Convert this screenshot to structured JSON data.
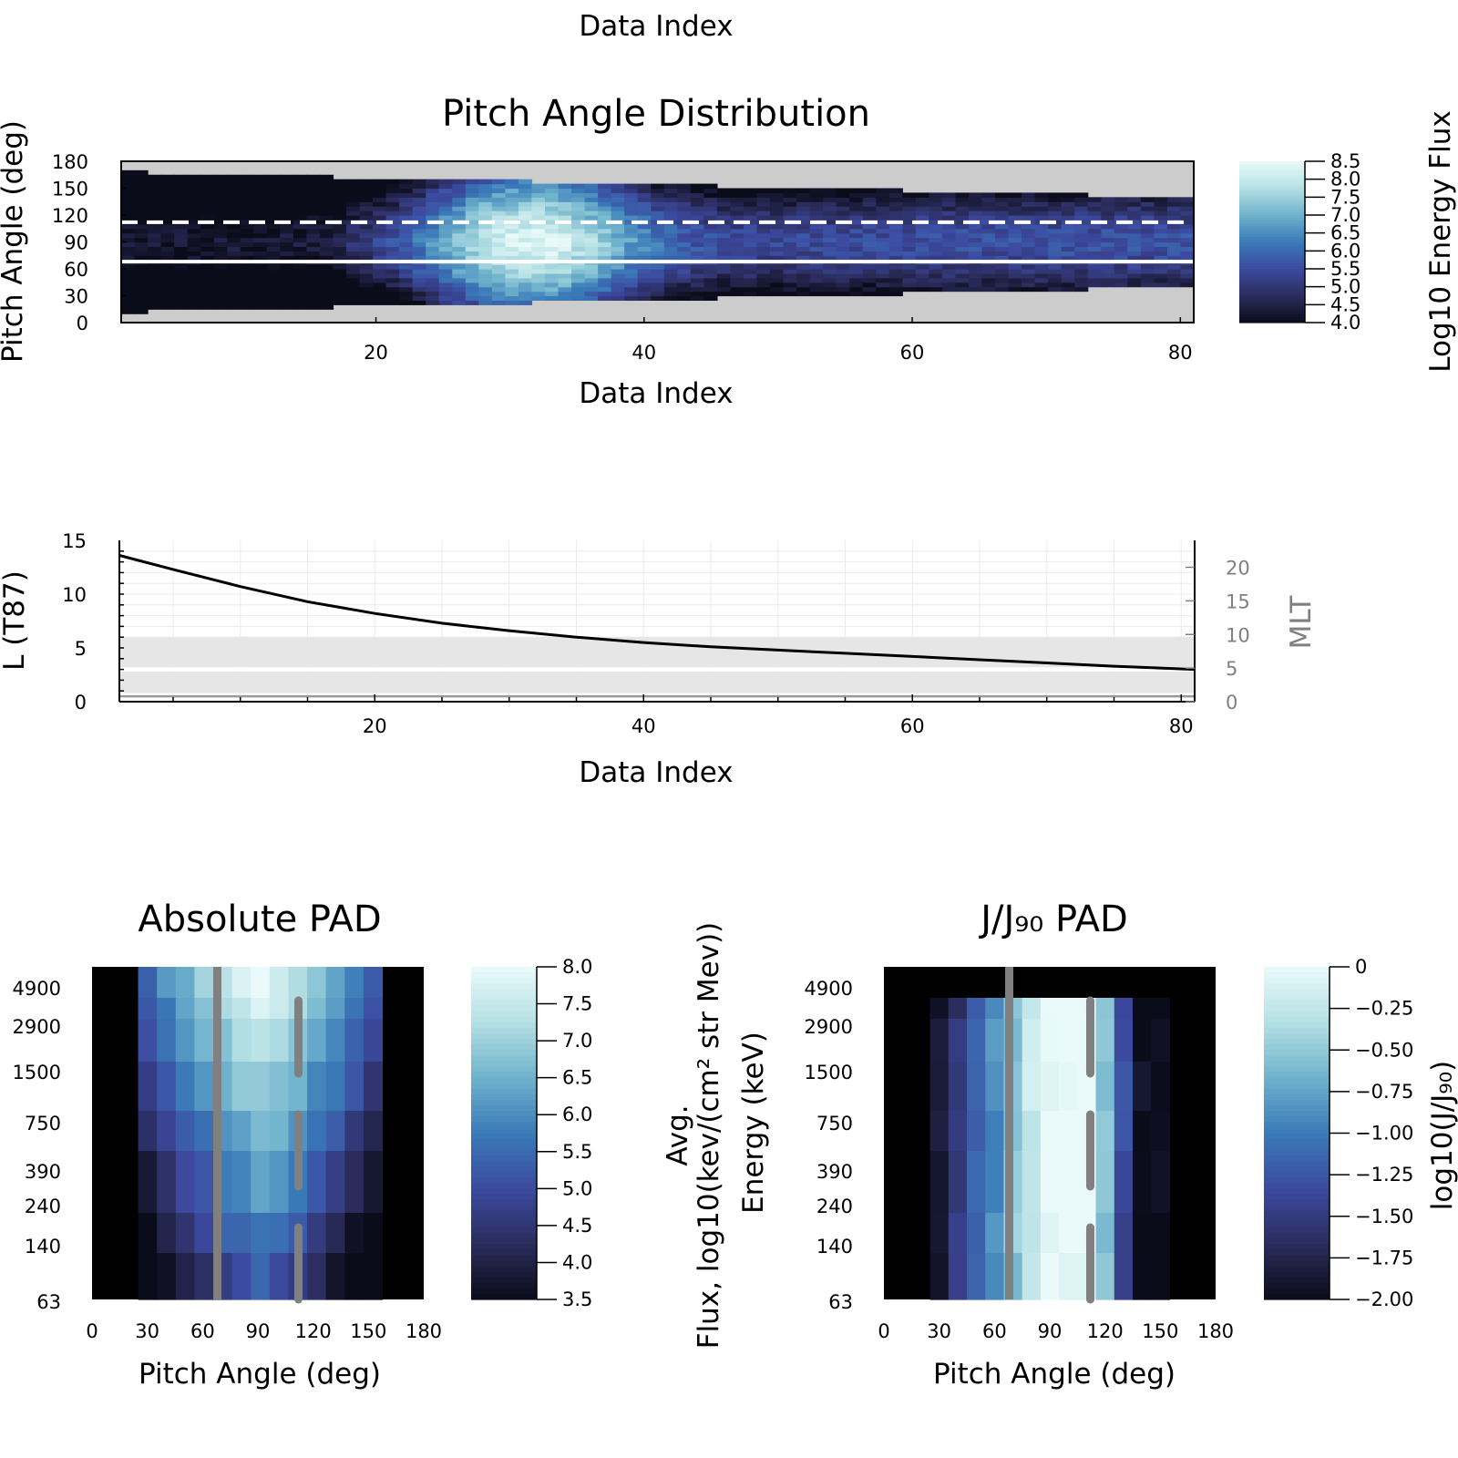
{
  "figure": {
    "top_label": "Data Index"
  },
  "chart_data": [
    {
      "type": "heatmap",
      "title": "Pitch Angle Distribution",
      "xlabel": "Data Index",
      "ylabel": "Pitch Angle (deg)",
      "colorbar_label": "Log10 Energy Flux",
      "xlim": [
        1,
        81
      ],
      "ylim": [
        0,
        180
      ],
      "x_ticks": [
        20,
        40,
        60,
        80
      ],
      "y_ticks": [
        0,
        30,
        60,
        90,
        120,
        150,
        180
      ],
      "colorbar_ticks": [
        "8.5",
        "8.0",
        "7.5",
        "7.0",
        "6.5",
        "6.0",
        "5.5",
        "5.0",
        "4.5",
        "4.0"
      ],
      "clim": [
        4.0,
        8.5
      ],
      "colormap": [
        "#0b0c1a",
        "#2b2c5c",
        "#3c4aa0",
        "#3a7ab8",
        "#6fb2cc",
        "#b5e0e4",
        "#eafafa"
      ],
      "fill_color": "#cccccc",
      "n_columns": 81,
      "pitch_bin_deg": 5,
      "lower_edge_deg": [
        12,
        40
      ],
      "upper_edge_deg": [
        168,
        140
      ],
      "peak_index": 31,
      "reference_lines": [
        {
          "value": 68,
          "style": "solid",
          "color": "#ffffff"
        },
        {
          "value": 112,
          "style": "dashed",
          "color": "#ffffff"
        }
      ]
    },
    {
      "type": "line",
      "xlabel": "Data Index",
      "ylabel": "L (T87)",
      "y2label": "MLT",
      "xlim": [
        1,
        81
      ],
      "ylim": [
        0,
        15
      ],
      "y2lim": [
        0,
        24
      ],
      "x_ticks": [
        20,
        40,
        60,
        80
      ],
      "y_ticks": [
        0,
        5,
        10,
        15
      ],
      "y2_ticks": [
        0,
        5,
        10,
        15,
        20
      ],
      "grid": true,
      "shaded_bands": [
        {
          "from": 0.8,
          "to": 2.8,
          "color": "#e6e6e6"
        },
        {
          "from": 3.2,
          "to": 6.0,
          "color": "#e6e6e6"
        }
      ],
      "reference_line": {
        "value": 3.0,
        "color": "#ffffff"
      },
      "series": [
        {
          "axis": "left",
          "color": "#000000",
          "x": [
            1,
            5,
            10,
            15,
            20,
            25,
            30,
            35,
            40,
            45,
            50,
            55,
            60,
            65,
            70,
            75,
            81
          ],
          "y": [
            13.6,
            12.3,
            10.7,
            9.3,
            8.2,
            7.3,
            6.6,
            6.0,
            5.5,
            5.1,
            4.8,
            4.5,
            4.2,
            3.9,
            3.6,
            3.3,
            3.0
          ]
        },
        {
          "axis": "right",
          "color": "#999999",
          "x": [
            1,
            81
          ],
          "y": [
            0.8,
            0.8
          ]
        }
      ]
    },
    {
      "type": "heatmap",
      "title": "Absolute PAD",
      "xlabel": "Pitch Angle (deg)",
      "ylabel": "Energy (keV)",
      "colorbar_label": "Avg. Flux, log10(kev/(cm² str Mev))",
      "xlim": [
        0,
        180
      ],
      "x_ticks": [
        0,
        30,
        60,
        90,
        120,
        150,
        180
      ],
      "energy_bins_keV": [
        63,
        140,
        240,
        390,
        750,
        1500,
        2900,
        4900
      ],
      "colorbar_ticks": [
        "8.0",
        "7.5",
        "7.0",
        "6.5",
        "6.0",
        "5.5",
        "5.0",
        "4.5",
        "4.0",
        "3.5"
      ],
      "clim": [
        3.5,
        8.0
      ],
      "colormap": [
        "#0b0c1a",
        "#2b2c5c",
        "#3c4aa0",
        "#3a7ab8",
        "#6fb2cc",
        "#b5e0e4",
        "#eafafa"
      ],
      "background": "#000000",
      "reference_lines": [
        {
          "value": 68,
          "style": "solid",
          "color": "#808080"
        },
        {
          "value": 112,
          "style": "dashed",
          "color": "#808080"
        }
      ]
    },
    {
      "type": "heatmap",
      "title": "J/J₉₀ PAD",
      "xlabel": "Pitch Angle (deg)",
      "ylabel": "",
      "colorbar_label": "log10(J/J₉₀)",
      "xlim": [
        0,
        180
      ],
      "x_ticks": [
        0,
        30,
        60,
        90,
        120,
        150,
        180
      ],
      "energy_bins_keV": [
        63,
        140,
        240,
        390,
        750,
        1500,
        2900,
        4900
      ],
      "colorbar_ticks": [
        "0",
        "−0.25",
        "−0.50",
        "−0.75",
        "−1.00",
        "−1.25",
        "−1.50",
        "−1.75",
        "−2.00"
      ],
      "clim": [
        -2.0,
        0
      ],
      "colormap": [
        "#0b0c1a",
        "#2b2c5c",
        "#3c4aa0",
        "#3a7ab8",
        "#6fb2cc",
        "#b5e0e4",
        "#eafafa"
      ],
      "background": "#000000",
      "reference_lines": [
        {
          "value": 68,
          "style": "solid",
          "color": "#808080"
        },
        {
          "value": 112,
          "style": "dashed",
          "color": "#808080"
        }
      ]
    }
  ]
}
